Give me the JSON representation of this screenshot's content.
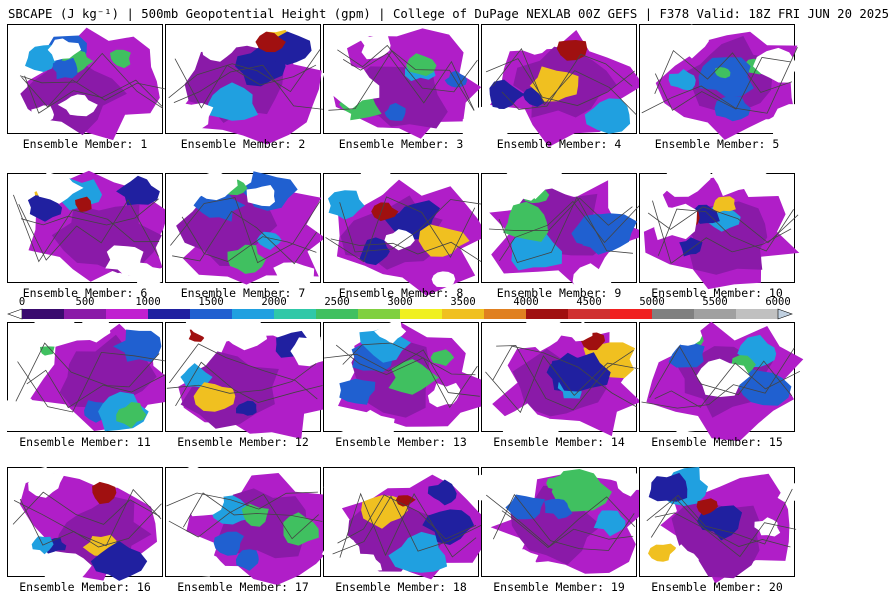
{
  "header": {
    "title": "SBCAPE (J kg⁻¹) | 500mb Geopotential Height (gpm) | College of DuPage NEXLAB 00Z GEFS | F378 Valid: 18Z FRI JUN 20 2025"
  },
  "panels": [
    {
      "label": "Ensemble Member: 1"
    },
    {
      "label": "Ensemble Member: 2"
    },
    {
      "label": "Ensemble Member: 3"
    },
    {
      "label": "Ensemble Member: 4"
    },
    {
      "label": "Ensemble Member: 5"
    },
    {
      "label": "Ensemble Member: 6"
    },
    {
      "label": "Ensemble Member: 7"
    },
    {
      "label": "Ensemble Member: 8"
    },
    {
      "label": "Ensemble Member: 9"
    },
    {
      "label": "Ensemble Member: 10"
    },
    {
      "label": "Ensemble Member: 11"
    },
    {
      "label": "Ensemble Member: 12"
    },
    {
      "label": "Ensemble Member: 13"
    },
    {
      "label": "Ensemble Member: 14"
    },
    {
      "label": "Ensemble Member: 15"
    },
    {
      "label": "Ensemble Member: 16"
    },
    {
      "label": "Ensemble Member: 17"
    },
    {
      "label": "Ensemble Member: 18"
    },
    {
      "label": "Ensemble Member: 19"
    },
    {
      "label": "Ensemble Member: 20"
    }
  ],
  "colorbar": {
    "min": 0,
    "max": 6000,
    "ticks": [
      "0",
      "500",
      "1000",
      "1500",
      "2000",
      "2500",
      "3000",
      "3500",
      "4000",
      "4500",
      "5000",
      "5500",
      "6000"
    ],
    "colors": [
      "#3a0a6e",
      "#8a1aa8",
      "#c020d0",
      "#2020a0",
      "#2060d0",
      "#20a0e0",
      "#30c8a8",
      "#40c060",
      "#80d040",
      "#f0f020",
      "#f0c020",
      "#e08020",
      "#a01010",
      "#d03030",
      "#f02020",
      "#808080",
      "#a0a0a0",
      "#c0c0c0"
    ]
  }
}
